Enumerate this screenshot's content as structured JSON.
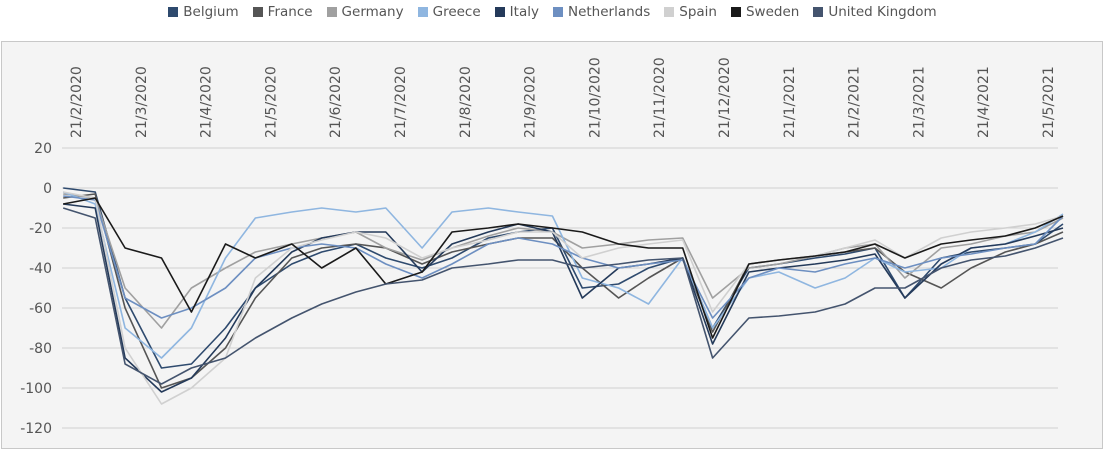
{
  "chart_data": {
    "type": "line",
    "title": "",
    "xlabel": "",
    "ylabel": "",
    "ylim": [
      -120,
      20
    ],
    "yticks": [
      20,
      0,
      -20,
      -40,
      -60,
      -80,
      -100,
      -120
    ],
    "grid": true,
    "legend_position": "top",
    "x_tick_labels": [
      "21/2/2020",
      "21/3/2020",
      "21/4/2020",
      "21/5/2020",
      "21/6/2020",
      "21/7/2020",
      "21/8/2020",
      "21/9/2020",
      "21/10/2020",
      "21/11/2020",
      "21/12/2020",
      "21/1/2021",
      "21/2/2021",
      "21/3/2021",
      "21/4/2021",
      "21/5/2021"
    ],
    "x": [
      "2020-02-15",
      "2020-03-01",
      "2020-03-15",
      "2020-04-01",
      "2020-04-15",
      "2020-05-01",
      "2020-05-15",
      "2020-06-01",
      "2020-06-15",
      "2020-07-01",
      "2020-07-15",
      "2020-08-01",
      "2020-08-15",
      "2020-09-01",
      "2020-09-15",
      "2020-10-01",
      "2020-10-15",
      "2020-11-01",
      "2020-11-15",
      "2020-12-01",
      "2020-12-15",
      "2021-01-01",
      "2021-01-15",
      "2021-02-01",
      "2021-02-15",
      "2021-03-01",
      "2021-03-15",
      "2021-04-01",
      "2021-04-15",
      "2021-05-01",
      "2021-05-15",
      "2021-05-28"
    ],
    "series": [
      {
        "name": "Belgium",
        "color": "#2e4a6e",
        "values": [
          0,
          -2,
          -55,
          -90,
          -88,
          -70,
          -50,
          -38,
          -32,
          -28,
          -35,
          -40,
          -35,
          -25,
          -22,
          -20,
          -50,
          -48,
          -40,
          -35,
          -70,
          -40,
          -38,
          -35,
          -33,
          -30,
          -55,
          -35,
          -32,
          -30,
          -28,
          -18
        ]
      },
      {
        "name": "France",
        "color": "#555555",
        "values": [
          -5,
          -3,
          -60,
          -100,
          -95,
          -80,
          -55,
          -35,
          -30,
          -28,
          -30,
          -38,
          -32,
          -28,
          -25,
          -25,
          -40,
          -55,
          -45,
          -35,
          -72,
          -38,
          -36,
          -34,
          -32,
          -30,
          -42,
          -50,
          -40,
          -32,
          -28,
          -22
        ]
      },
      {
        "name": "Germany",
        "color": "#a0a0a0",
        "values": [
          -3,
          -5,
          -50,
          -70,
          -50,
          -40,
          -32,
          -28,
          -25,
          -22,
          -30,
          -36,
          -30,
          -24,
          -20,
          -22,
          -30,
          -28,
          -26,
          -25,
          -55,
          -40,
          -38,
          -34,
          -30,
          -28,
          -45,
          -30,
          -28,
          -24,
          -22,
          -15
        ]
      },
      {
        "name": "Greece",
        "color": "#8fb6e0",
        "values": [
          -2,
          -8,
          -70,
          -85,
          -70,
          -35,
          -15,
          -12,
          -10,
          -12,
          -10,
          -30,
          -12,
          -10,
          -12,
          -14,
          -45,
          -50,
          -58,
          -35,
          -70,
          -45,
          -42,
          -50,
          -45,
          -35,
          -42,
          -40,
          -30,
          -28,
          -22,
          -13
        ]
      },
      {
        "name": "Italy",
        "color": "#243a5a",
        "values": [
          -8,
          -10,
          -85,
          -102,
          -95,
          -75,
          -50,
          -32,
          -25,
          -22,
          -22,
          -42,
          -28,
          -22,
          -18,
          -22,
          -55,
          -40,
          -38,
          -35,
          -78,
          -42,
          -40,
          -38,
          -36,
          -33,
          -55,
          -38,
          -30,
          -28,
          -24,
          -20
        ]
      },
      {
        "name": "Netherlands",
        "color": "#6d8fc1",
        "values": [
          -4,
          -6,
          -55,
          -65,
          -60,
          -50,
          -35,
          -30,
          -28,
          -30,
          -38,
          -45,
          -38,
          -28,
          -25,
          -28,
          -35,
          -40,
          -38,
          -36,
          -65,
          -45,
          -40,
          -42,
          -38,
          -35,
          -40,
          -35,
          -33,
          -30,
          -28,
          -14
        ]
      },
      {
        "name": "Spain",
        "color": "#d0d0d0",
        "values": [
          -2,
          -5,
          -80,
          -108,
          -100,
          -85,
          -45,
          -30,
          -26,
          -22,
          -25,
          -35,
          -30,
          -26,
          -22,
          -22,
          -35,
          -30,
          -28,
          -26,
          -62,
          -38,
          -36,
          -34,
          -30,
          -26,
          -35,
          -25,
          -22,
          -20,
          -18,
          -14
        ]
      },
      {
        "name": "Sweden",
        "color": "#1a1a1a",
        "values": [
          -8,
          -5,
          -30,
          -35,
          -62,
          -28,
          -35,
          -28,
          -40,
          -30,
          -48,
          -42,
          -22,
          -20,
          -18,
          -20,
          -22,
          -28,
          -30,
          -30,
          -75,
          -38,
          -36,
          -34,
          -32,
          -28,
          -35,
          -28,
          -26,
          -24,
          -20,
          -14
        ]
      },
      {
        "name": "United Kingdom",
        "color": "#44546e",
        "values": [
          -10,
          -15,
          -88,
          -98,
          -90,
          -85,
          -75,
          -65,
          -58,
          -52,
          -48,
          -46,
          -40,
          -38,
          -36,
          -36,
          -40,
          -38,
          -36,
          -35,
          -85,
          -65,
          -64,
          -62,
          -58,
          -50,
          -50,
          -40,
          -36,
          -34,
          -30,
          -25
        ]
      }
    ]
  }
}
